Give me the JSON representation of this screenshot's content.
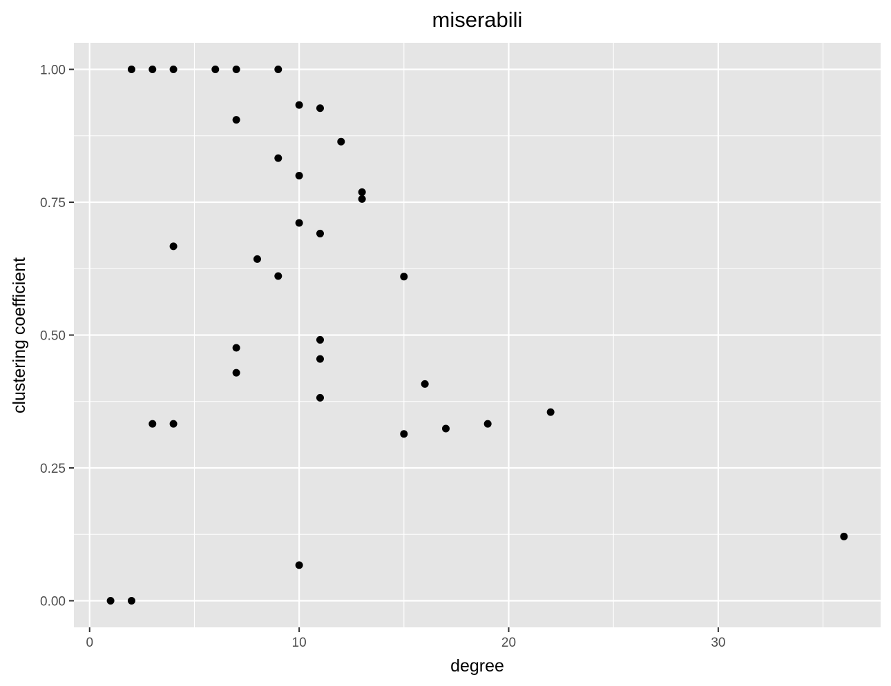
{
  "chart_data": {
    "type": "scatter",
    "title": "miserabili",
    "xlabel": "degree",
    "ylabel": "clustering coefficient",
    "xlim": [
      -0.75,
      37.75
    ],
    "ylim": [
      -0.05,
      1.05
    ],
    "x_ticks": [
      0,
      10,
      20,
      30
    ],
    "x_tick_labels": [
      "0",
      "10",
      "20",
      "30"
    ],
    "y_ticks": [
      0,
      0.25,
      0.5,
      0.75,
      1
    ],
    "y_tick_labels": [
      "0.00",
      "0.25",
      "0.50",
      "0.75",
      "1.00"
    ],
    "grid": true,
    "panel_background": "#e5e5e5",
    "grid_color": "#ffffff",
    "point_color": "#000000",
    "points": [
      {
        "x": 1,
        "y": 0.0
      },
      {
        "x": 2,
        "y": 0.0
      },
      {
        "x": 2,
        "y": 1.0
      },
      {
        "x": 3,
        "y": 1.0
      },
      {
        "x": 4,
        "y": 1.0
      },
      {
        "x": 6,
        "y": 1.0
      },
      {
        "x": 7,
        "y": 1.0
      },
      {
        "x": 9,
        "y": 1.0
      },
      {
        "x": 10,
        "y": 0.933
      },
      {
        "x": 11,
        "y": 0.927
      },
      {
        "x": 7,
        "y": 0.905
      },
      {
        "x": 12,
        "y": 0.864
      },
      {
        "x": 9,
        "y": 0.833
      },
      {
        "x": 10,
        "y": 0.8
      },
      {
        "x": 13,
        "y": 0.769
      },
      {
        "x": 13,
        "y": 0.756
      },
      {
        "x": 10,
        "y": 0.711
      },
      {
        "x": 11,
        "y": 0.691
      },
      {
        "x": 4,
        "y": 0.667
      },
      {
        "x": 8,
        "y": 0.643
      },
      {
        "x": 9,
        "y": 0.611
      },
      {
        "x": 15,
        "y": 0.61
      },
      {
        "x": 11,
        "y": 0.491
      },
      {
        "x": 7,
        "y": 0.476
      },
      {
        "x": 11,
        "y": 0.455
      },
      {
        "x": 7,
        "y": 0.429
      },
      {
        "x": 16,
        "y": 0.408
      },
      {
        "x": 11,
        "y": 0.382
      },
      {
        "x": 22,
        "y": 0.355
      },
      {
        "x": 3,
        "y": 0.333
      },
      {
        "x": 4,
        "y": 0.333
      },
      {
        "x": 19,
        "y": 0.333
      },
      {
        "x": 17,
        "y": 0.324
      },
      {
        "x": 15,
        "y": 0.314
      },
      {
        "x": 36,
        "y": 0.121
      },
      {
        "x": 10,
        "y": 0.067
      }
    ]
  }
}
